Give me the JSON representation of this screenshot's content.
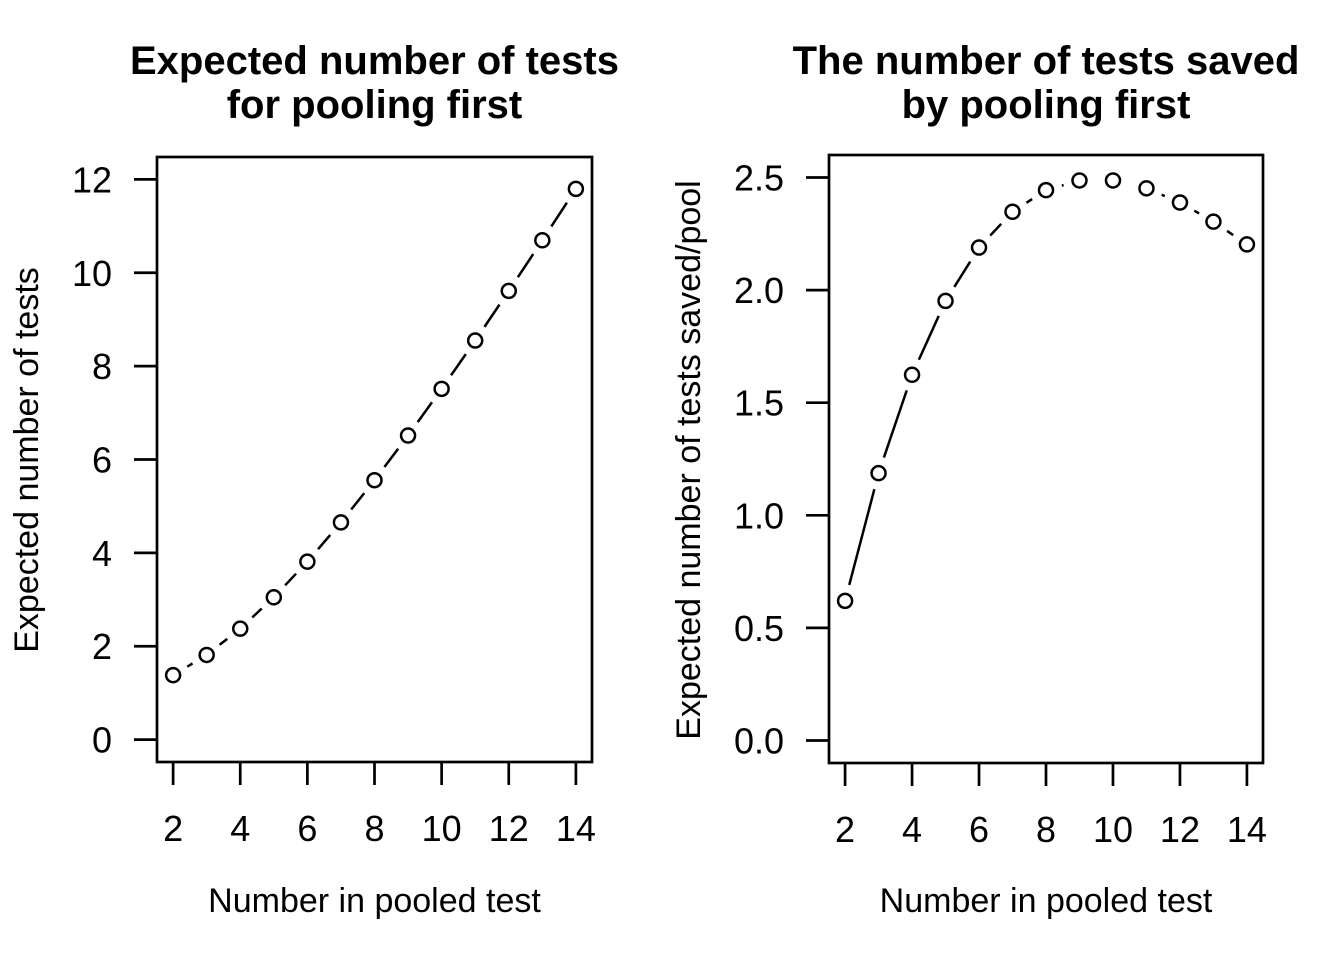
{
  "figure": {
    "background_color": "#ffffff",
    "foreground_color": "#000000"
  },
  "chart_data": [
    {
      "type": "line",
      "title": [
        "Expected number of tests",
        "for pooling first"
      ],
      "xlabel": "Number in pooled test",
      "ylabel": "Expected number of tests",
      "x": [
        2,
        3,
        4,
        5,
        6,
        7,
        8,
        9,
        10,
        11,
        12,
        13,
        14
      ],
      "y": [
        1.38,
        1.813,
        2.376,
        3.048,
        3.811,
        4.652,
        5.556,
        6.513,
        7.513,
        8.548,
        9.611,
        10.696,
        11.797
      ],
      "xticks": {
        "values": [
          2,
          4,
          6,
          8,
          10,
          12,
          14
        ],
        "labels": [
          "2",
          "4",
          "6",
          "8",
          "10",
          "12",
          "14"
        ]
      },
      "yticks": {
        "values": [
          0,
          2,
          4,
          6,
          8,
          10,
          12
        ],
        "labels": [
          "0",
          "2",
          "4",
          "6",
          "8",
          "10",
          "12"
        ]
      },
      "xlim": [
        1.52,
        14.48
      ],
      "ylim": [
        -0.48,
        12.48
      ],
      "marker": "open-circle",
      "line_style": "solid-segments-with-gaps-at-points",
      "grid": false,
      "legend": "none"
    },
    {
      "type": "line",
      "title": [
        "The number of tests saved",
        "by pooling first"
      ],
      "xlabel": "Number in pooled test",
      "ylabel": "Expected number of tests saved/pool",
      "x": [
        2,
        3,
        4,
        5,
        6,
        7,
        8,
        9,
        10,
        11,
        12,
        13,
        14
      ],
      "y": [
        0.62,
        1.187,
        1.624,
        1.952,
        2.189,
        2.348,
        2.444,
        2.487,
        2.487,
        2.452,
        2.389,
        2.304,
        2.203
      ],
      "xticks": {
        "values": [
          2,
          4,
          6,
          8,
          10,
          12,
          14
        ],
        "labels": [
          "2",
          "4",
          "6",
          "8",
          "10",
          "12",
          "14"
        ]
      },
      "yticks": {
        "values": [
          0.0,
          0.5,
          1.0,
          1.5,
          2.0,
          2.5
        ],
        "labels": [
          "0.0",
          "0.5",
          "1.0",
          "1.5",
          "2.0",
          "2.5"
        ]
      },
      "xlim": [
        1.52,
        14.48
      ],
      "ylim": [
        -0.1,
        2.6
      ],
      "marker": "open-circle",
      "line_style": "solid-segments-with-gaps-at-points",
      "grid": false,
      "legend": "none"
    }
  ]
}
